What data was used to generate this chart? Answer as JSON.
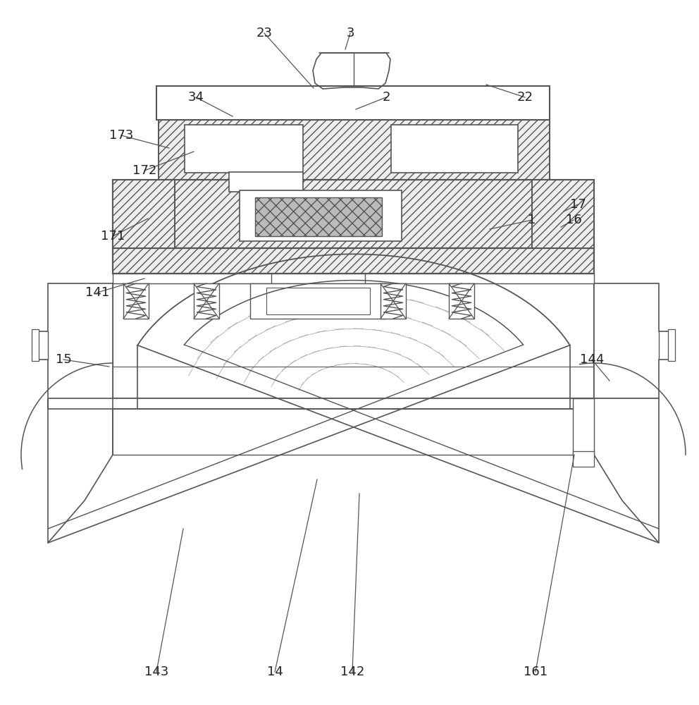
{
  "bg": "white",
  "ec": "#555555",
  "fc_hatch": "#eeeeee",
  "fc_white": "white",
  "fc_gray": "#bbbbbb",
  "leaders": [
    [
      "23",
      375,
      953,
      445,
      875
    ],
    [
      "3",
      497,
      953,
      490,
      930
    ],
    [
      "34",
      278,
      862,
      330,
      835
    ],
    [
      "2",
      548,
      862,
      505,
      845
    ],
    [
      "22",
      745,
      862,
      690,
      880
    ],
    [
      "173",
      172,
      808,
      240,
      790
    ],
    [
      "172",
      205,
      758,
      275,
      785
    ],
    [
      "1",
      755,
      688,
      695,
      675
    ],
    [
      "17",
      820,
      710,
      800,
      700
    ],
    [
      "16",
      814,
      688,
      796,
      678
    ],
    [
      "171",
      160,
      665,
      210,
      690
    ],
    [
      "141",
      138,
      585,
      205,
      605
    ],
    [
      "15",
      90,
      490,
      155,
      480
    ],
    [
      "144",
      840,
      490,
      865,
      460
    ],
    [
      "14",
      390,
      47,
      450,
      320
    ],
    [
      "142",
      500,
      47,
      510,
      300
    ],
    [
      "143",
      222,
      47,
      260,
      250
    ],
    [
      "161",
      760,
      47,
      815,
      355
    ]
  ]
}
